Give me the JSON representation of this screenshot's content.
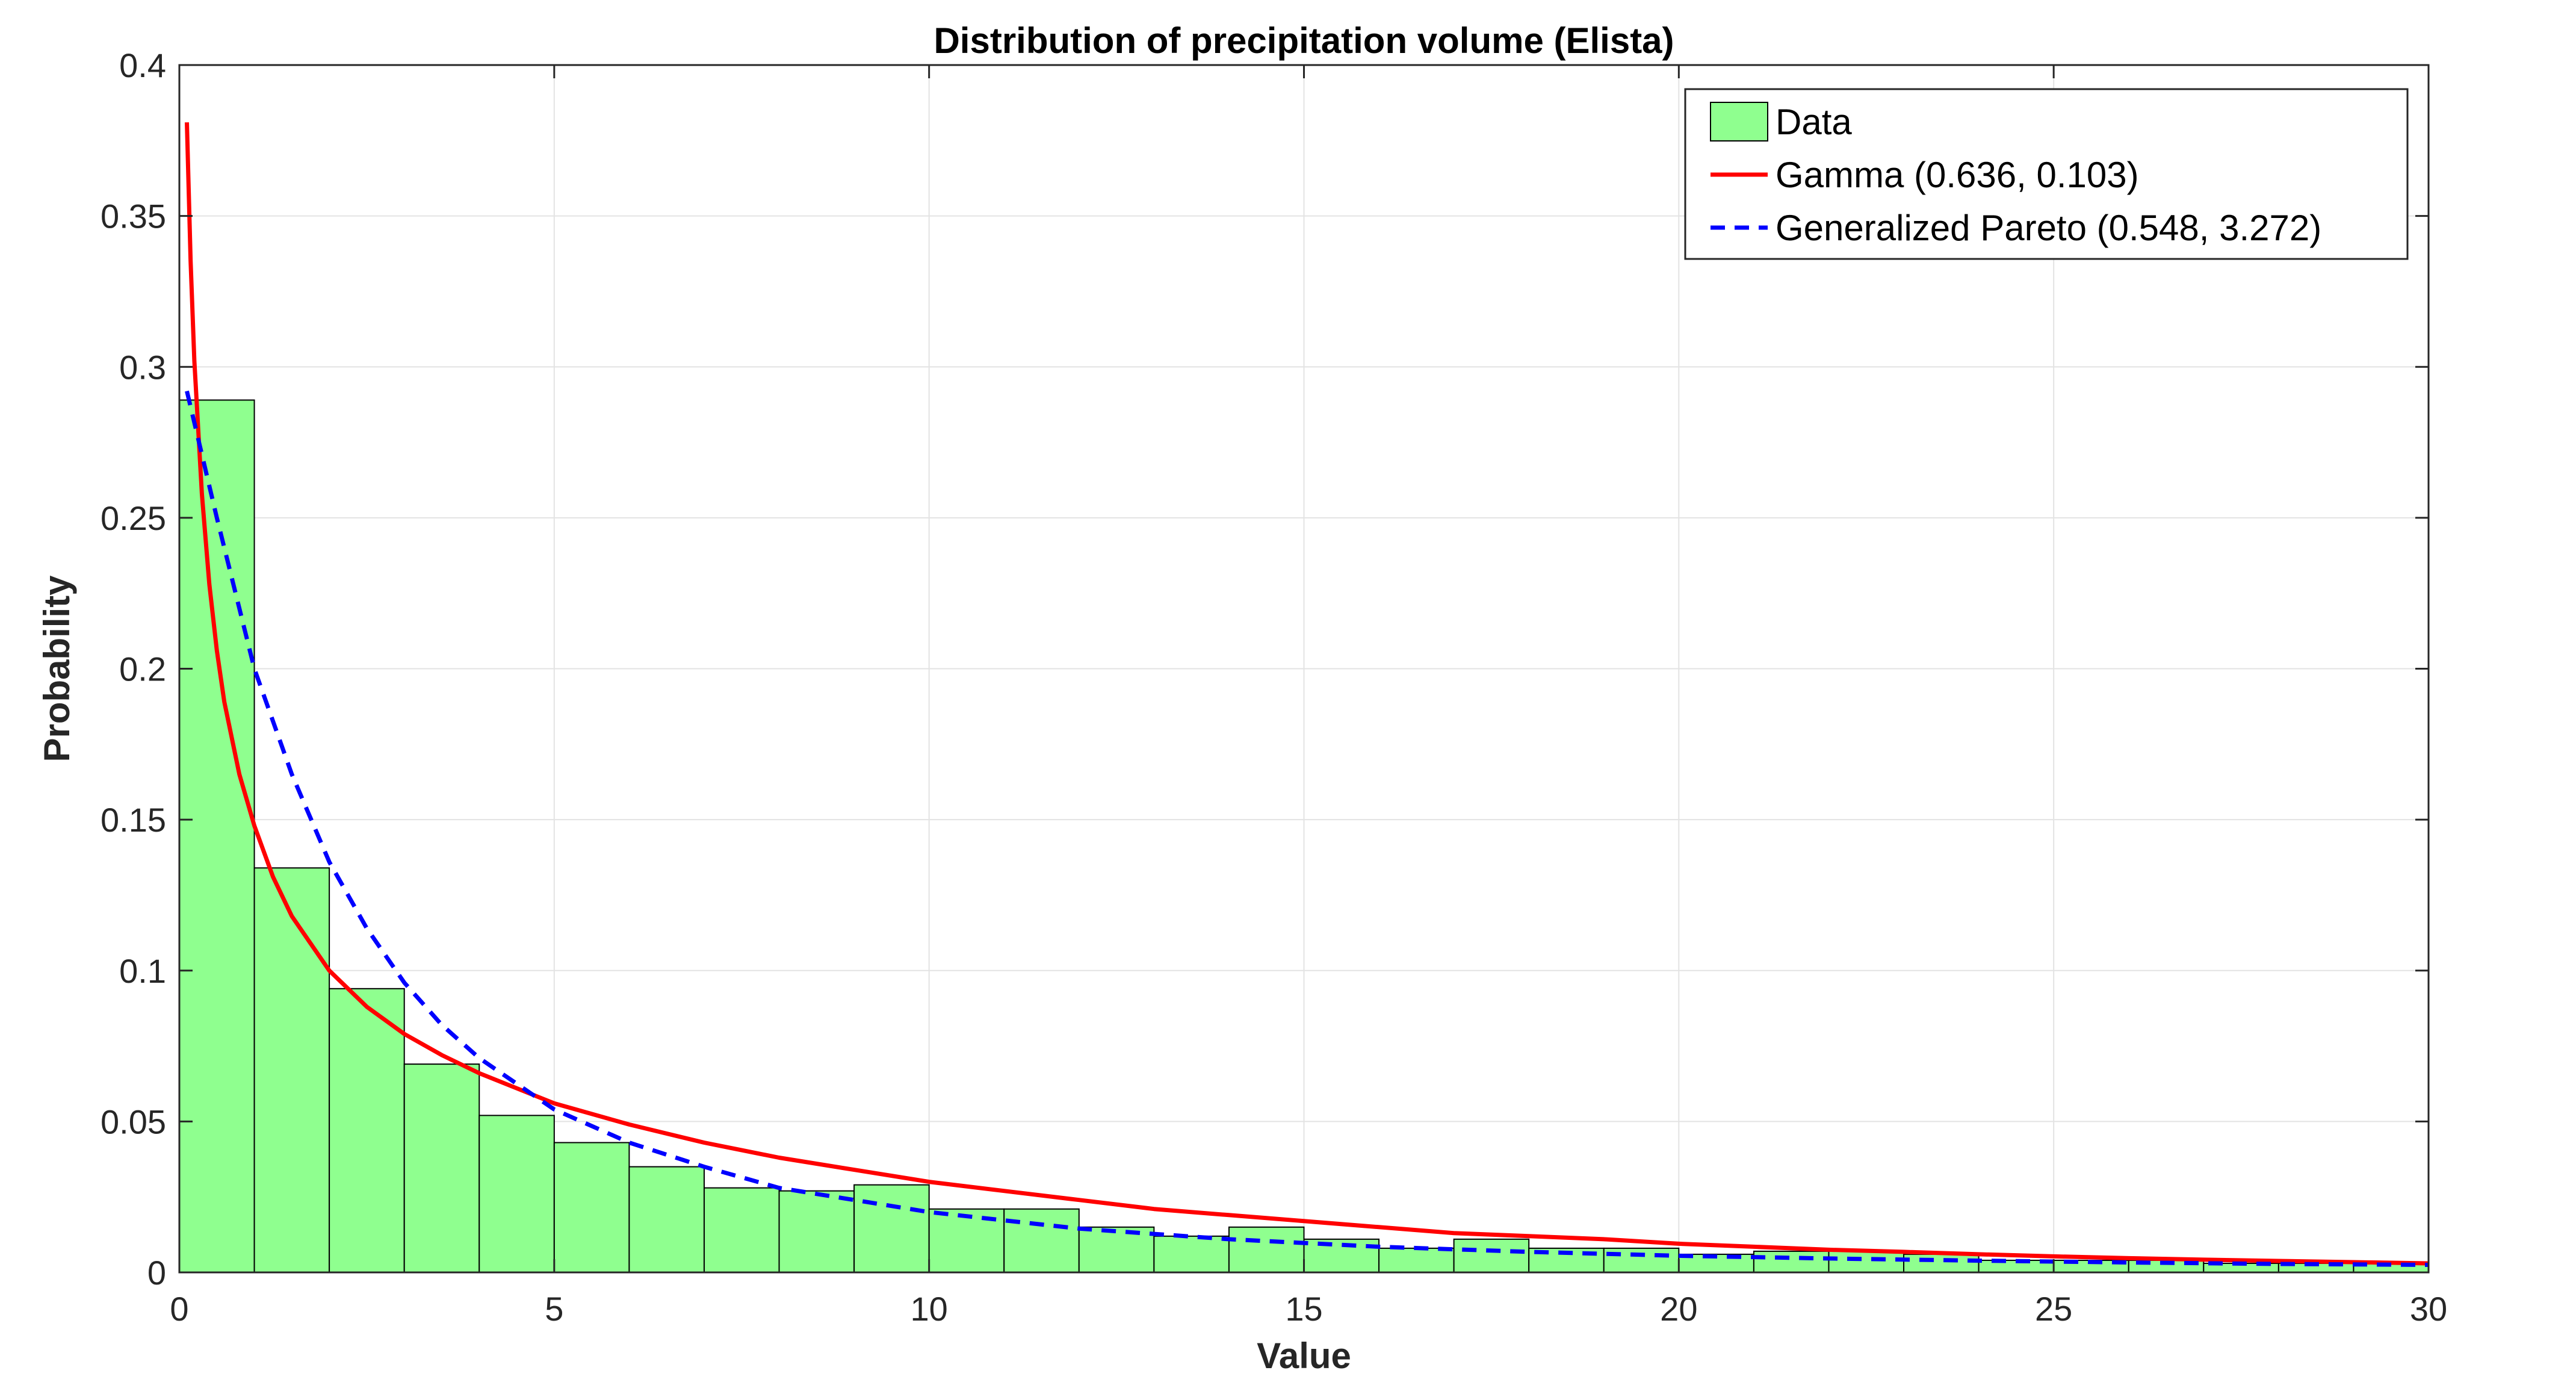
{
  "chart_data": {
    "type": "bar",
    "title": "Distribution of precipitation volume (Elista)",
    "xlabel": "Value",
    "ylabel": "Probability",
    "xlim": [
      0,
      30
    ],
    "ylim": [
      0,
      0.4
    ],
    "grid": true,
    "legend_position": "top-right",
    "xticks": [
      "0",
      "5",
      "10",
      "15",
      "20",
      "25",
      "30"
    ],
    "yticks": [
      "0",
      "0.05",
      "0.1",
      "0.15",
      "0.2",
      "0.25",
      "0.3",
      "0.35",
      "0.4"
    ],
    "bin_edges": [
      0,
      1,
      2,
      3,
      4,
      5,
      6,
      7,
      8,
      9,
      10,
      11,
      12,
      13,
      14,
      15,
      16,
      17,
      18,
      19,
      20,
      21,
      22,
      23,
      24,
      25,
      26,
      27,
      28,
      29,
      30
    ],
    "histogram": {
      "name": "Data",
      "color": "#8FFF8F",
      "values": [
        0.289,
        0.134,
        0.094,
        0.069,
        0.052,
        0.043,
        0.035,
        0.028,
        0.027,
        0.029,
        0.021,
        0.021,
        0.015,
        0.012,
        0.015,
        0.011,
        0.008,
        0.011,
        0.008,
        0.008,
        0.006,
        0.007,
        0.007,
        0.006,
        0.004,
        0.004,
        0.004,
        0.003,
        0.003,
        0.003
      ]
    },
    "series": [
      {
        "name": "Gamma (0.636, 0.103)",
        "style": "solid",
        "color": "#FF0000",
        "x": [
          0.1,
          0.15,
          0.2,
          0.3,
          0.4,
          0.5,
          0.6,
          0.8,
          1,
          1.25,
          1.5,
          2,
          2.5,
          3,
          3.5,
          4,
          5,
          6,
          7,
          8,
          9,
          10,
          11,
          12,
          13,
          14,
          15,
          16,
          17,
          18,
          19,
          20,
          21,
          22,
          23,
          24,
          25,
          26,
          27,
          28,
          29,
          30
        ],
        "y": [
          0.381,
          0.335,
          0.302,
          0.258,
          0.228,
          0.206,
          0.189,
          0.165,
          0.148,
          0.131,
          0.118,
          0.1,
          0.088,
          0.079,
          0.072,
          0.066,
          0.056,
          0.049,
          0.043,
          0.038,
          0.034,
          0.03,
          0.027,
          0.024,
          0.021,
          0.019,
          0.017,
          0.015,
          0.013,
          0.012,
          0.011,
          0.0095,
          0.0085,
          0.0075,
          0.0068,
          0.006,
          0.0053,
          0.0047,
          0.0042,
          0.0038,
          0.0034,
          0.003
        ]
      },
      {
        "name": "Generalized Pareto (0.548, 3.272)",
        "style": "dashed",
        "color": "#0000FF",
        "x": [
          0.1,
          0.5,
          1,
          1.5,
          2,
          2.5,
          3,
          3.5,
          4,
          5,
          6,
          7,
          8,
          9,
          10,
          12,
          14,
          16,
          18,
          20,
          22,
          24,
          26,
          28,
          30
        ],
        "y": [
          0.292,
          0.25,
          0.2,
          0.165,
          0.136,
          0.114,
          0.096,
          0.082,
          0.071,
          0.054,
          0.043,
          0.035,
          0.028,
          0.024,
          0.02,
          0.0145,
          0.011,
          0.0085,
          0.0068,
          0.0055,
          0.0046,
          0.0039,
          0.0033,
          0.0028,
          0.0025
        ]
      }
    ]
  }
}
